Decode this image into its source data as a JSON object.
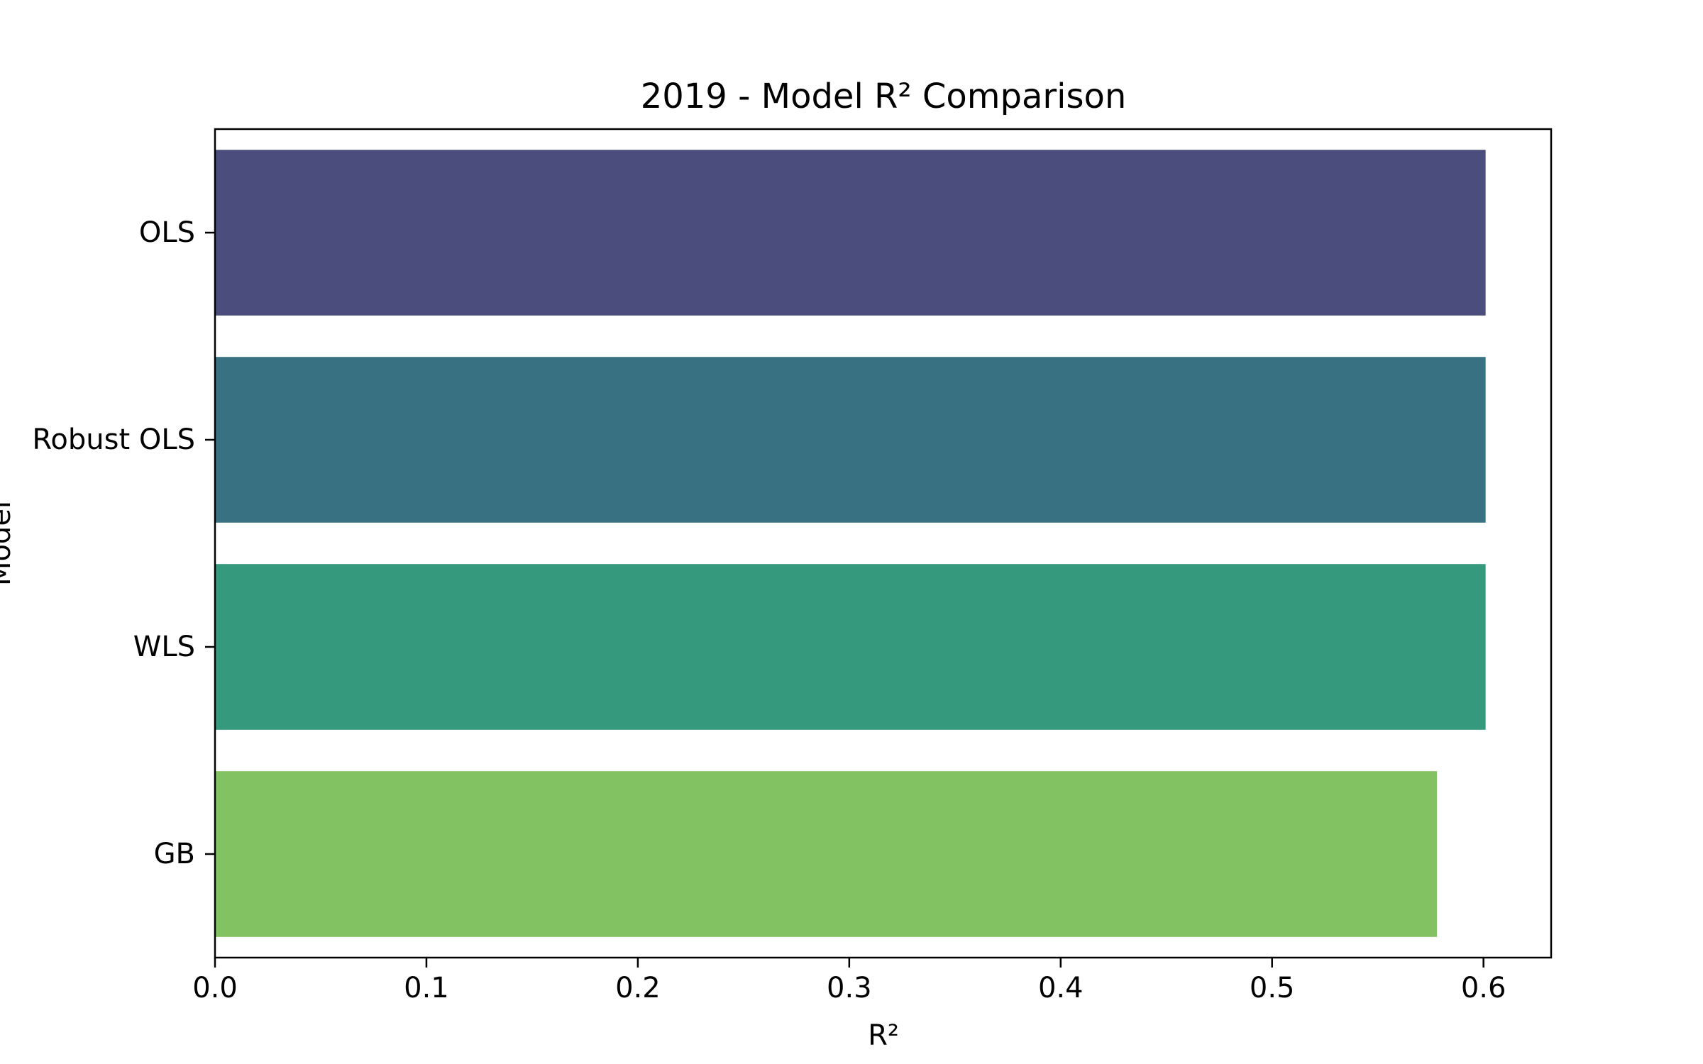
{
  "chart_data": {
    "type": "bar",
    "orientation": "horizontal",
    "title": "2019 - Model R² Comparison",
    "xlabel": "R²",
    "ylabel": "Model",
    "categories": [
      "OLS",
      "Robust OLS",
      "WLS",
      "GB"
    ],
    "values": [
      0.601,
      0.601,
      0.601,
      0.578
    ],
    "colors": [
      "#4b4d7c",
      "#387181",
      "#359a7d",
      "#82c263"
    ],
    "xlim": [
      0,
      0.632
    ],
    "xticks": [
      "0.0",
      "0.1",
      "0.2",
      "0.3",
      "0.4",
      "0.5",
      "0.6"
    ],
    "grid": false,
    "legend": "none"
  }
}
